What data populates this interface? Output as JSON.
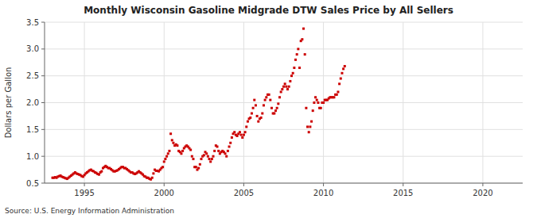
{
  "chart_data": {
    "type": "scatter",
    "title": "Monthly Wisconsin Gasoline Midgrade DTW Sales Price by All Sellers",
    "ylabel": "Dollars per Gallon",
    "annotations": [
      "Source: U.S. Energy Information Administration"
    ],
    "color": "#cc0000",
    "marker": "square",
    "grid": true,
    "xlim": [
      1992.5,
      2022.5
    ],
    "ylim": [
      0.5,
      3.5
    ],
    "xticks": [
      1995,
      2000,
      2005,
      2010,
      2015,
      2020
    ],
    "yticks": [
      0.5,
      {
        "value": 1.0,
        "label": "1.0"
      },
      1.5,
      {
        "value": 2.0,
        "label": "2.0"
      },
      2.5,
      {
        "value": 3.0,
        "label": "3.0"
      },
      3.5
    ],
    "x": [
      1993.0,
      1993.083,
      1993.167,
      1993.25,
      1993.333,
      1993.417,
      1993.5,
      1993.583,
      1993.667,
      1993.75,
      1993.833,
      1993.917,
      1994.0,
      1994.083,
      1994.167,
      1994.25,
      1994.333,
      1994.417,
      1994.5,
      1994.583,
      1994.667,
      1994.75,
      1994.833,
      1994.917,
      1995.0,
      1995.083,
      1995.167,
      1995.25,
      1995.333,
      1995.417,
      1995.5,
      1995.583,
      1995.667,
      1995.75,
      1995.833,
      1995.917,
      1996.0,
      1996.083,
      1996.167,
      1996.25,
      1996.333,
      1996.417,
      1996.5,
      1996.583,
      1996.667,
      1996.75,
      1996.833,
      1996.917,
      1997.0,
      1997.083,
      1997.167,
      1997.25,
      1997.333,
      1997.417,
      1997.5,
      1997.583,
      1997.667,
      1997.75,
      1997.833,
      1997.917,
      1998.0,
      1998.083,
      1998.167,
      1998.25,
      1998.333,
      1998.417,
      1998.5,
      1998.583,
      1998.667,
      1998.75,
      1998.833,
      1998.917,
      1999.0,
      1999.083,
      1999.167,
      1999.25,
      1999.333,
      1999.417,
      1999.5,
      1999.583,
      1999.667,
      1999.75,
      1999.833,
      1999.917,
      2000.0,
      2000.083,
      2000.167,
      2000.25,
      2000.333,
      2000.417,
      2000.5,
      2000.583,
      2000.667,
      2000.75,
      2000.833,
      2000.917,
      2001.0,
      2001.083,
      2001.167,
      2001.25,
      2001.333,
      2001.417,
      2001.5,
      2001.583,
      2001.667,
      2001.75,
      2001.833,
      2001.917,
      2002.0,
      2002.083,
      2002.167,
      2002.25,
      2002.333,
      2002.417,
      2002.5,
      2002.583,
      2002.667,
      2002.75,
      2002.833,
      2002.917,
      2003.0,
      2003.083,
      2003.167,
      2003.25,
      2003.333,
      2003.417,
      2003.5,
      2003.583,
      2003.667,
      2003.75,
      2003.833,
      2003.917,
      2004.0,
      2004.083,
      2004.167,
      2004.25,
      2004.333,
      2004.417,
      2004.5,
      2004.583,
      2004.667,
      2004.75,
      2004.833,
      2004.917,
      2005.0,
      2005.083,
      2005.167,
      2005.25,
      2005.333,
      2005.417,
      2005.5,
      2005.583,
      2005.667,
      2005.75,
      2005.833,
      2005.917,
      2006.0,
      2006.083,
      2006.167,
      2006.25,
      2006.333,
      2006.417,
      2006.5,
      2006.583,
      2006.667,
      2006.75,
      2006.833,
      2006.917,
      2007.0,
      2007.083,
      2007.167,
      2007.25,
      2007.333,
      2007.417,
      2007.5,
      2007.583,
      2007.667,
      2007.75,
      2007.833,
      2007.917,
      2008.0,
      2008.083,
      2008.167,
      2008.25,
      2008.333,
      2008.417,
      2008.5,
      2008.583,
      2008.667,
      2008.75,
      2008.833,
      2008.917,
      2009.0,
      2009.083,
      2009.167,
      2009.25,
      2009.333,
      2009.417,
      2009.5,
      2009.583,
      2009.667,
      2009.75,
      2009.833,
      2009.917,
      2010.0,
      2010.083,
      2010.167,
      2010.25,
      2010.333,
      2010.417,
      2010.5,
      2010.583,
      2010.667,
      2010.75,
      2010.833,
      2010.917,
      2011.0,
      2011.083,
      2011.167,
      2011.25,
      2011.333
    ],
    "values": [
      0.6,
      0.6,
      0.61,
      0.6,
      0.62,
      0.63,
      0.64,
      0.62,
      0.61,
      0.6,
      0.59,
      0.58,
      0.6,
      0.62,
      0.64,
      0.66,
      0.68,
      0.7,
      0.68,
      0.67,
      0.66,
      0.65,
      0.63,
      0.62,
      0.65,
      0.68,
      0.7,
      0.72,
      0.74,
      0.75,
      0.73,
      0.72,
      0.7,
      0.69,
      0.67,
      0.66,
      0.7,
      0.72,
      0.78,
      0.8,
      0.82,
      0.8,
      0.78,
      0.78,
      0.76,
      0.74,
      0.72,
      0.72,
      0.73,
      0.74,
      0.76,
      0.78,
      0.8,
      0.8,
      0.78,
      0.78,
      0.76,
      0.74,
      0.72,
      0.7,
      0.7,
      0.68,
      0.67,
      0.68,
      0.7,
      0.72,
      0.7,
      0.68,
      0.66,
      0.63,
      0.62,
      0.6,
      0.6,
      0.58,
      0.57,
      0.6,
      0.68,
      0.75,
      0.73,
      0.73,
      0.72,
      0.75,
      0.78,
      0.8,
      0.9,
      0.95,
      1.0,
      1.05,
      1.1,
      1.42,
      1.3,
      1.25,
      1.2,
      1.22,
      1.2,
      1.1,
      1.08,
      1.05,
      1.1,
      1.15,
      1.18,
      1.2,
      1.18,
      1.15,
      1.12,
      1.0,
      0.95,
      0.8,
      0.8,
      0.75,
      0.78,
      0.85,
      0.95,
      1.0,
      1.02,
      1.08,
      1.05,
      1.0,
      0.95,
      0.9,
      0.95,
      1.0,
      1.1,
      1.2,
      1.18,
      1.1,
      1.05,
      1.08,
      1.1,
      1.08,
      1.05,
      1.0,
      1.1,
      1.18,
      1.25,
      1.35,
      1.42,
      1.45,
      1.4,
      1.38,
      1.42,
      1.45,
      1.4,
      1.35,
      1.4,
      1.45,
      1.55,
      1.65,
      1.7,
      1.72,
      1.8,
      1.9,
      2.05,
      1.95,
      1.75,
      1.65,
      1.7,
      1.72,
      1.8,
      1.95,
      2.05,
      2.1,
      2.15,
      2.15,
      2.05,
      1.9,
      1.8,
      1.8,
      1.85,
      1.9,
      1.98,
      2.1,
      2.2,
      2.25,
      2.3,
      2.35,
      2.3,
      2.25,
      2.3,
      2.4,
      2.5,
      2.55,
      2.65,
      2.8,
      2.9,
      3.0,
      2.65,
      3.15,
      3.18,
      3.38,
      2.9,
      1.9,
      1.55,
      1.45,
      1.55,
      1.65,
      1.85,
      2.0,
      2.1,
      2.05,
      2.0,
      1.9,
      1.9,
      2.0,
      2.0,
      2.05,
      2.05,
      2.05,
      2.08,
      2.1,
      2.1,
      2.1,
      2.1,
      2.15,
      2.15,
      2.2,
      2.35,
      2.45,
      2.55,
      2.63,
      2.68
    ]
  }
}
